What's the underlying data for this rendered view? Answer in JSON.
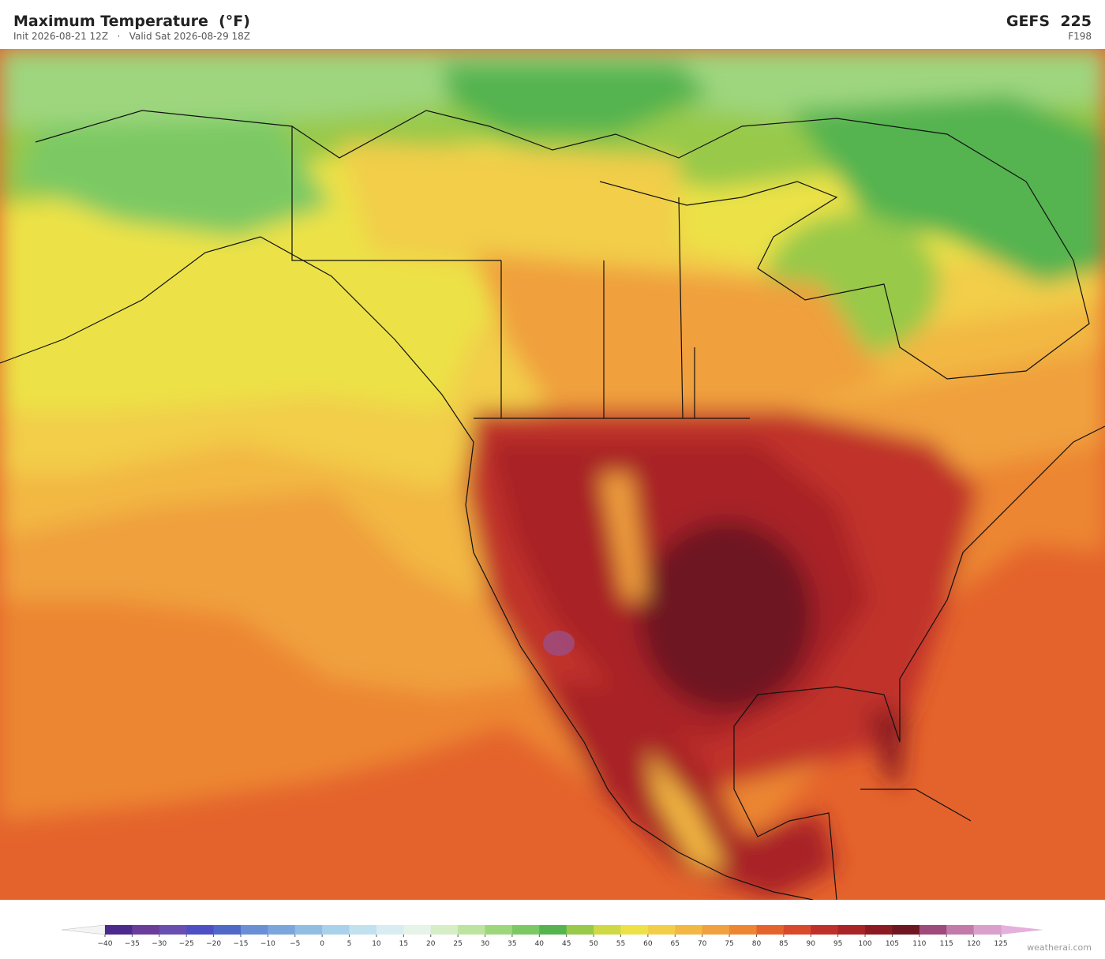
{
  "header": {
    "title": "Maximum Temperature  (°F)",
    "subtitle": "Init 2026-08-21 12Z   ·   Valid Sat 2026-08-29 18Z",
    "model": "GEFS  225",
    "forecast_hour": "F198"
  },
  "colorbar": {
    "ticks": [
      {
        "value": -40,
        "label": "−40"
      },
      {
        "value": -35,
        "label": "−35"
      },
      {
        "value": -30,
        "label": "−30"
      },
      {
        "value": -25,
        "label": "−25"
      },
      {
        "value": -20,
        "label": "−20"
      },
      {
        "value": -15,
        "label": "−15"
      },
      {
        "value": -10,
        "label": "−10"
      },
      {
        "value": -5,
        "label": "−5"
      },
      0,
      5,
      10,
      15,
      20,
      25,
      30,
      35,
      40,
      45,
      50,
      55,
      60,
      65,
      70,
      75,
      80,
      85,
      90,
      95,
      100,
      105,
      110,
      115,
      120,
      125
    ],
    "colors": [
      "#4a2a8c",
      "#6a3d9a",
      "#6b4fb0",
      "#4f4fc4",
      "#5068c8",
      "#6b8fd4",
      "#7aa6dc",
      "#92bde2",
      "#a9d1ea",
      "#c2e1ee",
      "#d9ecf2",
      "#e6f3e8",
      "#d6edc6",
      "#bde3a0",
      "#9ed67e",
      "#7cc964",
      "#55b450",
      "#98c94a",
      "#cfd946",
      "#ece247",
      "#f2ce48",
      "#f2b843",
      "#f0a03e",
      "#ec8633",
      "#e4632c",
      "#d84a2a",
      "#c0302a",
      "#a82427",
      "#8c1a22",
      "#6e1622",
      "#9e4a7a",
      "#c27aaa",
      "#d9a0cc"
    ],
    "under_color": "#f4f4f4",
    "over_color": "#e4b0dc"
  },
  "credit": "weatherai.com"
}
